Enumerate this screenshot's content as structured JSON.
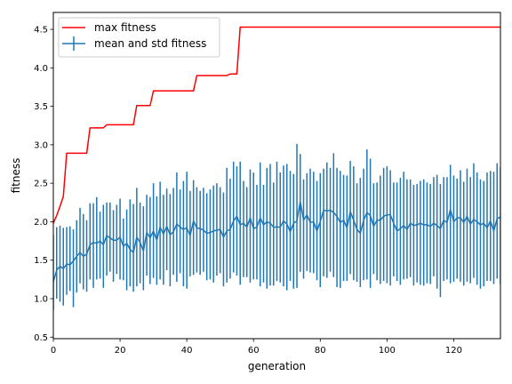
{
  "chart_data": {
    "type": "line",
    "xlabel": "generation",
    "ylabel": "fitness",
    "xlim": [
      0,
      134
    ],
    "ylim": [
      0.48,
      4.72
    ],
    "x_ticks": [
      0,
      20,
      40,
      60,
      80,
      100,
      120
    ],
    "y_ticks": [
      0.5,
      1.0,
      1.5,
      2.0,
      2.5,
      3.0,
      3.5,
      4.0,
      4.5
    ],
    "legend_position": "top-left",
    "series": [
      {
        "name": "max fitness",
        "color": "#ff0000",
        "style": "step-line",
        "x": [
          0,
          1,
          2,
          3,
          4,
          10,
          11,
          15,
          16,
          24,
          25,
          29,
          30,
          42,
          43,
          52,
          53,
          55,
          56,
          134
        ],
        "y": [
          1.98,
          2.08,
          2.2,
          2.33,
          2.89,
          2.89,
          3.22,
          3.22,
          3.26,
          3.26,
          3.51,
          3.51,
          3.7,
          3.7,
          3.9,
          3.9,
          3.92,
          3.92,
          4.53,
          4.53
        ]
      },
      {
        "name": "mean and std fitness",
        "color": "#1f77b4",
        "style": "line-with-errorbars",
        "x": [
          0,
          1,
          2,
          3,
          4,
          5,
          6,
          7,
          8,
          9,
          10,
          11,
          12,
          13,
          14,
          15,
          16,
          17,
          18,
          19,
          20,
          21,
          22,
          23,
          24,
          25,
          26,
          27,
          28,
          29,
          30,
          31,
          32,
          33,
          34,
          35,
          36,
          37,
          38,
          39,
          40,
          41,
          42,
          43,
          44,
          45,
          46,
          47,
          48,
          49,
          50,
          51,
          52,
          53,
          54,
          55,
          56,
          57,
          58,
          59,
          60,
          61,
          62,
          63,
          64,
          65,
          66,
          67,
          68,
          69,
          70,
          71,
          72,
          73,
          74,
          75,
          76,
          77,
          78,
          79,
          80,
          81,
          82,
          83,
          84,
          85,
          86,
          87,
          88,
          89,
          90,
          91,
          92,
          93,
          94,
          95,
          96,
          97,
          98,
          99,
          100,
          101,
          102,
          103,
          104,
          105,
          106,
          107,
          108,
          109,
          110,
          111,
          112,
          113,
          114,
          115,
          116,
          117,
          118,
          119,
          120,
          121,
          122,
          123,
          124,
          125,
          126,
          127,
          128,
          129,
          130,
          131,
          132,
          133,
          134
        ],
        "mean": [
          1.22,
          1.37,
          1.42,
          1.39,
          1.45,
          1.44,
          1.49,
          1.55,
          1.6,
          1.55,
          1.58,
          1.7,
          1.73,
          1.72,
          1.75,
          1.7,
          1.82,
          1.79,
          1.76,
          1.76,
          1.8,
          1.68,
          1.72,
          1.64,
          1.6,
          1.8,
          1.73,
          1.62,
          1.86,
          1.79,
          1.88,
          1.76,
          1.93,
          1.84,
          1.94,
          1.83,
          1.87,
          1.97,
          1.93,
          1.9,
          1.92,
          1.82,
          2.01,
          1.92,
          1.91,
          1.89,
          1.85,
          1.86,
          1.88,
          1.89,
          1.9,
          1.8,
          1.88,
          1.9,
          2.01,
          2.07,
          1.96,
          1.98,
          1.93,
          2.05,
          1.91,
          1.93,
          2.05,
          1.96,
          2.0,
          1.98,
          1.93,
          1.93,
          1.93,
          2.01,
          1.97,
          1.87,
          1.98,
          2.01,
          2.26,
          2.02,
          2.09,
          1.99,
          2.0,
          1.88,
          2.0,
          2.15,
          2.14,
          2.15,
          2.12,
          2.07,
          1.99,
          2.02,
          1.92,
          2.13,
          2.02,
          1.9,
          1.85,
          2.02,
          2.12,
          2.08,
          1.94,
          2.02,
          2.02,
          2.07,
          2.09,
          2.09,
          1.98,
          1.88,
          1.91,
          1.95,
          1.9,
          1.98,
          1.95,
          1.96,
          1.98,
          1.96,
          1.96,
          1.94,
          1.98,
          1.95,
          1.91,
          2.02,
          1.99,
          2.16,
          2.0,
          2.05,
          2.05,
          1.99,
          2.07,
          1.97,
          2.03,
          2.0,
          1.96,
          1.98,
          1.92,
          2.01,
          1.88,
          2.04,
          2.06
        ],
        "upper": [
          1.83,
          1.93,
          1.95,
          1.92,
          1.93,
          1.94,
          1.9,
          2.02,
          2.18,
          2.1,
          2.02,
          2.24,
          2.24,
          2.32,
          2.13,
          2.22,
          2.25,
          2.25,
          2.15,
          2.22,
          2.3,
          2.04,
          2.16,
          2.29,
          2.23,
          2.44,
          2.25,
          2.2,
          2.35,
          2.32,
          2.5,
          2.33,
          2.52,
          2.35,
          2.43,
          2.36,
          2.44,
          2.64,
          2.42,
          2.53,
          2.65,
          2.4,
          2.54,
          2.45,
          2.4,
          2.44,
          2.37,
          2.42,
          2.47,
          2.5,
          2.45,
          2.38,
          2.7,
          2.56,
          2.78,
          2.72,
          2.78,
          2.53,
          2.45,
          2.68,
          2.64,
          2.48,
          2.77,
          2.48,
          2.7,
          2.75,
          2.51,
          2.78,
          2.64,
          2.73,
          2.75,
          2.66,
          2.62,
          3.01,
          2.88,
          2.55,
          2.63,
          2.69,
          2.65,
          2.53,
          2.63,
          2.69,
          2.77,
          2.7,
          2.89,
          2.7,
          2.66,
          2.61,
          2.6,
          2.79,
          2.72,
          2.5,
          2.57,
          2.69,
          2.94,
          2.82,
          2.5,
          2.51,
          2.6,
          2.7,
          2.72,
          2.67,
          2.51,
          2.51,
          2.57,
          2.65,
          2.55,
          2.55,
          2.48,
          2.49,
          2.53,
          2.55,
          2.51,
          2.49,
          2.58,
          2.61,
          2.49,
          2.58,
          2.58,
          2.74,
          2.6,
          2.56,
          2.67,
          2.52,
          2.69,
          2.58,
          2.76,
          2.64,
          2.55,
          2.53,
          2.64,
          2.66,
          2.65,
          2.76,
          2.71
        ],
        "lower": [
          0.85,
          1.0,
          0.96,
          0.91,
          1.05,
          1.1,
          0.89,
          1.08,
          1.2,
          1.12,
          1.09,
          1.25,
          1.14,
          1.25,
          1.26,
          1.14,
          1.3,
          1.35,
          1.22,
          1.32,
          1.25,
          1.24,
          1.11,
          1.16,
          1.09,
          1.16,
          1.2,
          1.11,
          1.3,
          1.19,
          1.27,
          1.18,
          1.25,
          1.18,
          1.37,
          1.16,
          1.31,
          1.22,
          1.33,
          1.16,
          1.13,
          1.29,
          1.31,
          1.34,
          1.31,
          1.35,
          1.24,
          1.25,
          1.21,
          1.3,
          1.33,
          1.16,
          1.21,
          1.26,
          1.34,
          1.3,
          1.18,
          1.28,
          1.28,
          1.21,
          1.25,
          1.25,
          1.16,
          1.21,
          1.13,
          1.17,
          1.17,
          1.23,
          1.21,
          1.16,
          1.11,
          1.23,
          1.13,
          1.14,
          1.35,
          1.26,
          1.36,
          1.34,
          1.33,
          1.24,
          1.15,
          1.29,
          1.27,
          1.35,
          1.28,
          1.15,
          1.14,
          1.23,
          1.23,
          1.32,
          1.24,
          1.22,
          1.15,
          1.24,
          1.25,
          1.14,
          1.32,
          1.24,
          1.19,
          1.23,
          1.2,
          1.17,
          1.29,
          1.23,
          1.18,
          1.25,
          1.26,
          1.28,
          1.17,
          1.21,
          1.18,
          1.17,
          1.2,
          1.19,
          1.29,
          1.13,
          1.02,
          1.23,
          1.25,
          1.2,
          1.22,
          1.26,
          1.22,
          1.17,
          1.22,
          1.2,
          1.27,
          1.18,
          1.13,
          1.16,
          1.23,
          1.23,
          1.19,
          1.26,
          1.18
        ]
      }
    ]
  }
}
